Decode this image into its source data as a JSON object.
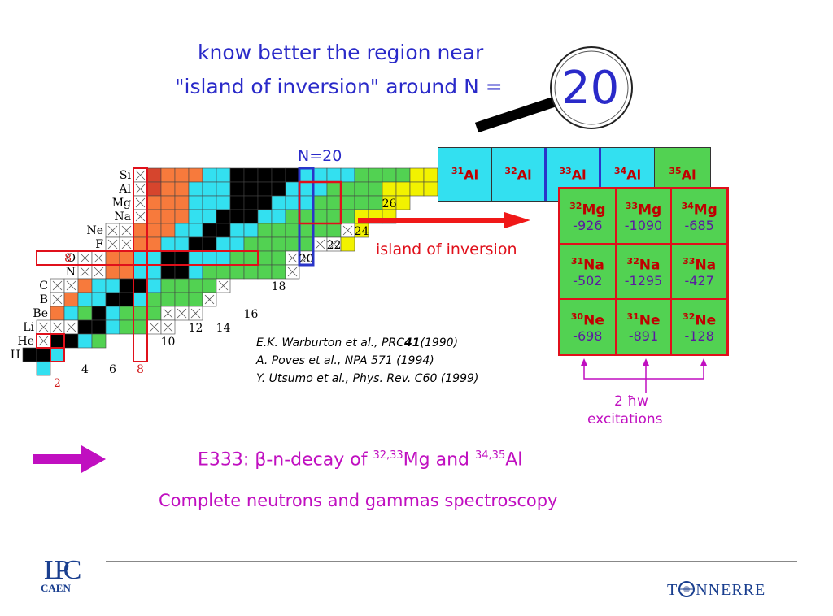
{
  "title": {
    "line1": "know better the region near",
    "line2": "\"island of inversion\"  around N =",
    "magic_number": "20"
  },
  "chart": {
    "n20_label": "N=20",
    "element_labels": [
      "Si",
      "Al",
      "Mg",
      "Na",
      "Ne",
      "F",
      "O",
      "N",
      "C",
      "B",
      "Be",
      "Li",
      "He",
      "H"
    ],
    "magic_labels": [
      "8",
      "8",
      "2"
    ],
    "n_tick_labels": [
      "4",
      "6",
      "10",
      "12",
      "14",
      "16",
      "18",
      "20",
      "22",
      "24",
      "26"
    ]
  },
  "al_isotopes": [
    {
      "mass": "31",
      "symbol": "Al",
      "color": "#33e0f0"
    },
    {
      "mass": "32",
      "symbol": "Al",
      "color": "#33e0f0"
    },
    {
      "mass": "33",
      "symbol": "Al",
      "color": "#33e0f0"
    },
    {
      "mass": "34",
      "symbol": "Al",
      "color": "#33e0f0"
    },
    {
      "mass": "35",
      "symbol": "Al",
      "color": "#52d252"
    }
  ],
  "island": {
    "label": "island of inversion",
    "cells": [
      {
        "mass": "32",
        "symbol": "Mg",
        "value": "-926"
      },
      {
        "mass": "33",
        "symbol": "Mg",
        "value": "-1090"
      },
      {
        "mass": "34",
        "symbol": "Mg",
        "value": "-685"
      },
      {
        "mass": "31",
        "symbol": "Na",
        "value": "-502"
      },
      {
        "mass": "32",
        "symbol": "Na",
        "value": "-1295"
      },
      {
        "mass": "33",
        "symbol": "Na",
        "value": "-427"
      },
      {
        "mass": "30",
        "symbol": "Ne",
        "value": "-698"
      },
      {
        "mass": "31",
        "symbol": "Ne",
        "value": "-891"
      },
      {
        "mass": "32",
        "symbol": "Ne",
        "value": "-128"
      }
    ],
    "excitations_line1": "2 ħw",
    "excitations_line2": "excitations"
  },
  "references": {
    "ref1_prefix": "E.K. Warburton et al., PRC",
    "ref1_vol": "41",
    "ref1_suffix": "(1990)",
    "ref2": "A. Poves et al., NPA 571 (1994)",
    "ref3": "Y. Utsumo et al., Phys. Rev. C60 (1999)"
  },
  "experiment": {
    "prefix": "E333: β-n-decay of ",
    "mass1": "32,33",
    "el1": "Mg and ",
    "mass2": "34,35",
    "el2": "Al",
    "subtitle": "Complete neutrons and gammas spectroscopy"
  },
  "footer": {
    "lab_logo": "LPC",
    "lab_text": "CAEN",
    "tonnerre_t": "T",
    "tonnerre_rest": "NNERRE"
  },
  "colors": {
    "stable": "#000000",
    "cyan": "#33e0f0",
    "green": "#52d252",
    "yellow": "#f2f200",
    "orange": "#f77a3c",
    "red": "#d6452d",
    "island_border": "#e0101b",
    "n20_column": "#2a35c9",
    "title_blue": "#2a2ac9",
    "magenta": "#c00fc0"
  }
}
